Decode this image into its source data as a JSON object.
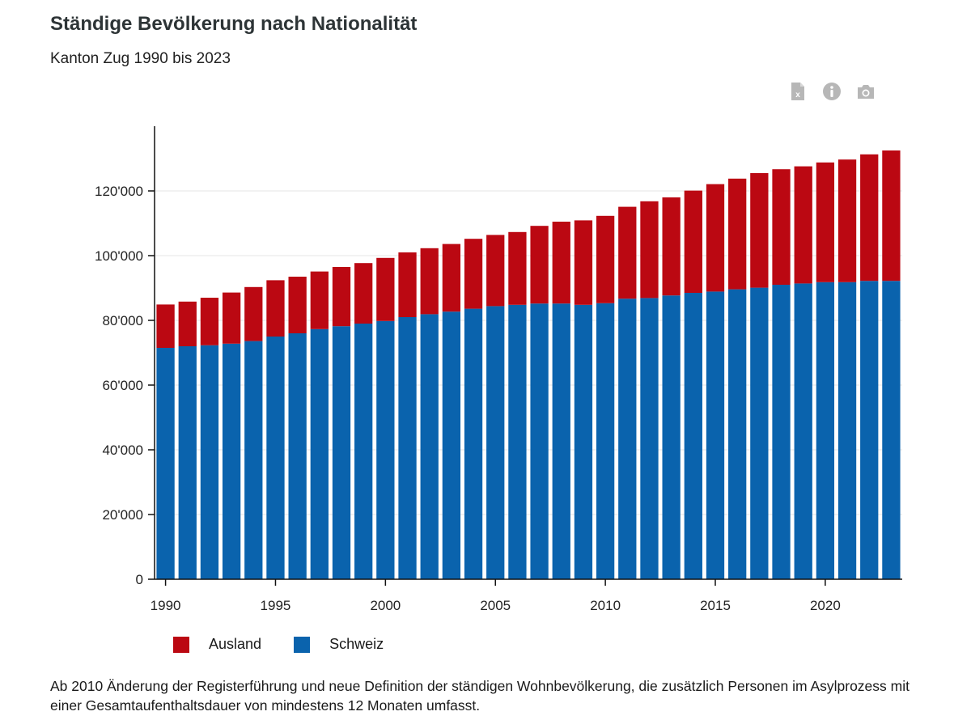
{
  "title": "Ständige Bevölkerung nach Nationalität",
  "subtitle": "Kanton Zug 1990 bis 2023",
  "toolbar": {
    "excel_icon": "excel-icon",
    "info_icon": "info-icon",
    "camera_icon": "camera-icon",
    "icon_color": "#b7b7b7"
  },
  "footnote": "Ab 2010 Änderung der Registerführung und neue Definition der ständigen Wohnbevölkerung, die zusätzlich Personen im Asylprozess mit einer Gesamtaufenthaltsdauer von mindestens 12 Monaten umfasst.",
  "chart_data": {
    "type": "bar",
    "stacked": true,
    "x": [
      1990,
      1991,
      1992,
      1993,
      1994,
      1995,
      1996,
      1997,
      1998,
      1999,
      2000,
      2001,
      2002,
      2003,
      2004,
      2005,
      2006,
      2007,
      2008,
      2009,
      2010,
      2011,
      2012,
      2013,
      2014,
      2015,
      2016,
      2017,
      2018,
      2019,
      2020,
      2021,
      2022,
      2023
    ],
    "series": [
      {
        "name": "Schweiz",
        "color": "#0a63ad",
        "values": [
          71500,
          72000,
          72300,
          72800,
          73600,
          75000,
          76000,
          77300,
          78200,
          79000,
          79800,
          81000,
          81900,
          82700,
          83600,
          84400,
          84800,
          85200,
          85200,
          84800,
          85300,
          86700,
          86900,
          87700,
          88500,
          88900,
          89600,
          90100,
          91000,
          91400,
          91800,
          91800,
          92200,
          92200
        ]
      },
      {
        "name": "Ausland",
        "color": "#bb0812",
        "values": [
          13400,
          13800,
          14700,
          15800,
          16700,
          17400,
          17500,
          17800,
          18300,
          18700,
          19500,
          20000,
          20400,
          20900,
          21600,
          22000,
          22500,
          24000,
          25300,
          26100,
          27000,
          28400,
          29900,
          30300,
          31600,
          33200,
          34200,
          35400,
          35700,
          36200,
          37000,
          37900,
          39100,
          40300
        ]
      }
    ],
    "xticks": [
      1990,
      1995,
      2000,
      2005,
      2010,
      2015,
      2020
    ],
    "yticks": [
      0,
      20000,
      40000,
      60000,
      80000,
      100000,
      120000
    ],
    "ytick_labels": [
      "0",
      "20'000",
      "40'000",
      "60'000",
      "80'000",
      "100'000",
      "120'000"
    ],
    "ylim": [
      0,
      140000
    ],
    "grid": true,
    "legend_placement": "bottom-left",
    "legend_order": [
      "Ausland",
      "Schweiz"
    ]
  }
}
